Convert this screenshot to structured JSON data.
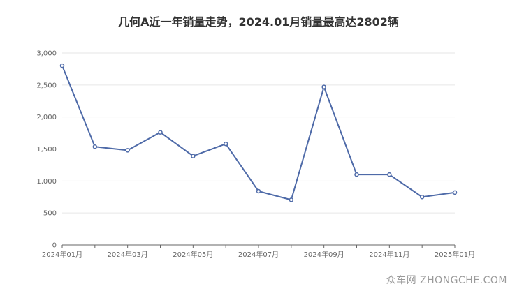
{
  "title": "几何A近一年销量走势，2024.01月销量最高达2802辆",
  "watermark": "众车网 ZHONGCHE.COM",
  "colors": {
    "line": "#4e6aa8",
    "grid": "#e6e6e6",
    "axis": "#666666"
  },
  "chart_data": {
    "type": "line",
    "title": "几何A近一年销量走势，2024.01月销量最高达2802辆",
    "xlabel": "",
    "ylabel": "",
    "ylim": [
      0,
      3000
    ],
    "y_ticks": [
      "0",
      "500",
      "1,000",
      "1,500",
      "2,000",
      "2,500",
      "3,000"
    ],
    "x": [
      "2024年01月",
      "2024年02月",
      "2024年03月",
      "2024年04月",
      "2024年05月",
      "2024年06月",
      "2024年07月",
      "2024年08月",
      "2024年09月",
      "2024年10月",
      "2024年11月",
      "2024年12月",
      "2025年01月"
    ],
    "x_tick_labels": [
      "2024年01月",
      "2024年03月",
      "2024年05月",
      "2024年07月",
      "2024年09月",
      "2024年11月",
      "2025年01月"
    ],
    "series": [
      {
        "values": [
          2802,
          1535,
          1480,
          1760,
          1390,
          1580,
          840,
          705,
          2470,
          1100,
          1100,
          750,
          820
        ]
      }
    ],
    "grid": true,
    "legend": "none"
  }
}
